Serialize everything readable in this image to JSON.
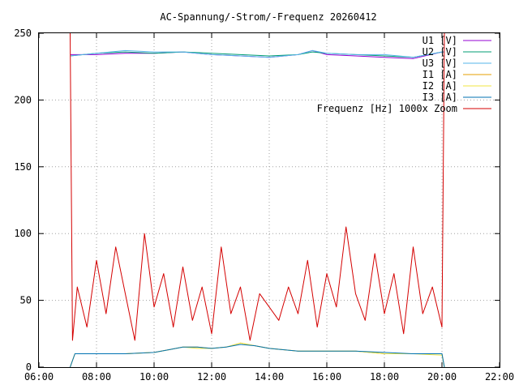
{
  "chart_data": {
    "type": "line",
    "title": "AC-Spannung/-Strom/-Frequenz 20260412",
    "xlabel": "",
    "ylabel": "",
    "xlim": [
      "06:00",
      "22:00"
    ],
    "ylim": [
      0,
      250
    ],
    "x_ticks": [
      "06:00",
      "08:00",
      "10:00",
      "12:00",
      "14:00",
      "16:00",
      "18:00",
      "20:00",
      "22:00"
    ],
    "y_ticks": [
      "0",
      "50",
      "100",
      "150",
      "200",
      "250"
    ],
    "grid": true,
    "legend_position": "top-right",
    "series": [
      {
        "name": "U1 [V]",
        "color": "#9400d3",
        "x": [
          "07:05",
          "08:00",
          "09:00",
          "10:00",
          "11:00",
          "12:00",
          "13:00",
          "14:00",
          "15:00",
          "15:30",
          "16:00",
          "17:00",
          "18:00",
          "19:00",
          "20:00",
          "20:05"
        ],
        "values": [
          234,
          234,
          235,
          235,
          236,
          234,
          233,
          232,
          234,
          237,
          234,
          233,
          232,
          231,
          236,
          236
        ]
      },
      {
        "name": "U2 [V]",
        "color": "#009e73",
        "x": [
          "07:05",
          "08:00",
          "09:00",
          "10:00",
          "11:00",
          "12:00",
          "13:00",
          "14:00",
          "15:00",
          "15:30",
          "16:00",
          "17:00",
          "18:00",
          "19:00",
          "20:00",
          "20:05"
        ],
        "values": [
          233,
          235,
          236,
          235,
          236,
          235,
          234,
          233,
          234,
          236,
          235,
          234,
          233,
          232,
          236,
          236
        ]
      },
      {
        "name": "U3 [V]",
        "color": "#56b4e9",
        "x": [
          "07:05",
          "08:00",
          "09:00",
          "10:00",
          "11:00",
          "12:00",
          "13:00",
          "14:00",
          "15:00",
          "15:30",
          "16:00",
          "17:00",
          "18:00",
          "19:00",
          "20:00",
          "20:05"
        ],
        "values": [
          233,
          235,
          237,
          236,
          236,
          234,
          233,
          232,
          234,
          237,
          235,
          234,
          234,
          232,
          236,
          236
        ]
      },
      {
        "name": "I1 [A]",
        "color": "#e69f00",
        "x": [
          "07:05",
          "07:15",
          "08:00",
          "09:00",
          "10:00",
          "10:30",
          "11:00",
          "11:30",
          "12:00",
          "12:30",
          "13:00",
          "13:30",
          "14:00",
          "15:00",
          "16:00",
          "17:00",
          "18:00",
          "19:00",
          "20:00",
          "20:05"
        ],
        "values": [
          0,
          10,
          10,
          10,
          11,
          13,
          15,
          15,
          14,
          15,
          18,
          16,
          14,
          12,
          12,
          12,
          10,
          10,
          10,
          0
        ]
      },
      {
        "name": "I2 [A]",
        "color": "#f0e442",
        "x": [
          "07:05",
          "07:15",
          "08:00",
          "09:00",
          "10:00",
          "10:30",
          "11:00",
          "11:30",
          "12:00",
          "12:30",
          "13:00",
          "13:30",
          "14:00",
          "15:00",
          "16:00",
          "17:00",
          "18:00",
          "19:00",
          "20:00",
          "20:05"
        ],
        "values": [
          0,
          10,
          10,
          10,
          11,
          13,
          15,
          14,
          14,
          15,
          18,
          16,
          14,
          12,
          12,
          12,
          10,
          10,
          9,
          0
        ]
      },
      {
        "name": "I3 [A]",
        "color": "#0072b2",
        "x": [
          "07:05",
          "07:15",
          "08:00",
          "09:00",
          "10:00",
          "10:30",
          "11:00",
          "11:30",
          "12:00",
          "12:30",
          "13:00",
          "13:30",
          "14:00",
          "15:00",
          "16:00",
          "17:00",
          "18:00",
          "19:00",
          "20:00",
          "20:05"
        ],
        "values": [
          0,
          10,
          10,
          10,
          11,
          13,
          15,
          15,
          14,
          15,
          17,
          16,
          14,
          12,
          12,
          12,
          11,
          10,
          10,
          0
        ]
      },
      {
        "name": "Frequenz [Hz] 1000x Zoom",
        "color": "#d40000",
        "x": [
          "07:05",
          "07:10",
          "07:20",
          "07:40",
          "08:00",
          "08:20",
          "08:40",
          "09:00",
          "09:20",
          "09:40",
          "10:00",
          "10:20",
          "10:40",
          "11:00",
          "11:20",
          "11:40",
          "12:00",
          "12:20",
          "12:40",
          "13:00",
          "13:20",
          "13:40",
          "14:00",
          "14:20",
          "14:40",
          "15:00",
          "15:20",
          "15:40",
          "16:00",
          "16:20",
          "16:40",
          "17:00",
          "17:20",
          "17:40",
          "18:00",
          "18:20",
          "18:40",
          "19:00",
          "19:20",
          "19:40",
          "20:00",
          "20:05"
        ],
        "values": [
          250,
          20,
          60,
          30,
          80,
          40,
          90,
          55,
          20,
          100,
          45,
          70,
          30,
          75,
          35,
          60,
          25,
          90,
          40,
          60,
          20,
          55,
          45,
          35,
          60,
          40,
          80,
          30,
          70,
          45,
          105,
          55,
          35,
          85,
          40,
          70,
          25,
          90,
          40,
          60,
          30,
          250
        ]
      }
    ]
  }
}
